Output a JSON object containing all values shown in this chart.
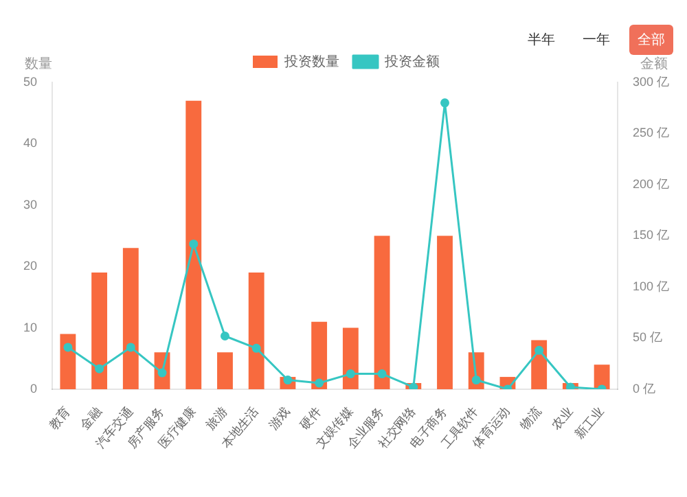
{
  "chart_data": {
    "type": "bar",
    "categories": [
      "教育",
      "金融",
      "汽车交通",
      "房产服务",
      "医疗健康",
      "旅游",
      "本地生活",
      "游戏",
      "硬件",
      "文娱传媒",
      "企业服务",
      "社交网络",
      "电子商务",
      "工具软件",
      "体育运动",
      "物流",
      "农业",
      "新工业"
    ],
    "series": [
      {
        "name": "投资数量",
        "color": "#f86a3e",
        "values": [
          9,
          19,
          23,
          6,
          47,
          6,
          19,
          2,
          11,
          10,
          25,
          1,
          25,
          6,
          2,
          8,
          1,
          4
        ]
      },
      {
        "name": "投资金额",
        "type": "line",
        "axis": "y2",
        "color": "#36c6c2",
        "values": [
          41,
          20,
          41,
          16,
          142,
          52,
          40,
          9,
          6,
          15,
          15,
          2,
          280,
          9,
          0,
          38,
          2,
          0
        ]
      }
    ],
    "ylabel": "数量",
    "y2label": "金额",
    "ylim": [
      0,
      50
    ],
    "yticks": [
      0,
      10,
      20,
      30,
      40,
      50
    ],
    "y2lim": [
      0,
      300
    ],
    "y2ticks": [
      {
        "value": 0,
        "label": "0 亿"
      },
      {
        "value": 50,
        "label": "50 亿"
      },
      {
        "value": 100,
        "label": "100 亿"
      },
      {
        "value": 150,
        "label": "150 亿"
      },
      {
        "value": 200,
        "label": "200 亿"
      },
      {
        "value": 250,
        "label": "250 亿"
      },
      {
        "value": 300,
        "label": "300 亿"
      }
    ],
    "grid": false,
    "legend": "top",
    "marker": "circle",
    "line_style": "solid",
    "annotations": [
      "半年",
      "一年",
      "全部"
    ]
  }
}
